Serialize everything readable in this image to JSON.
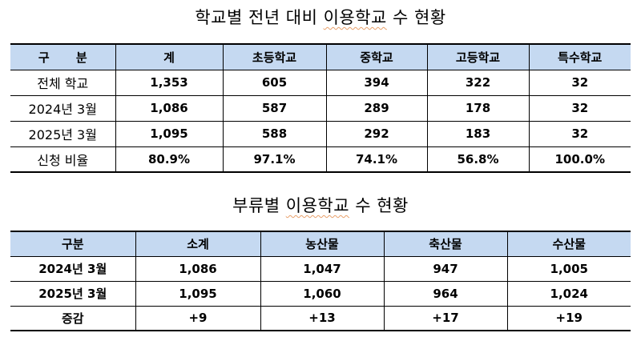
{
  "table1": {
    "title_parts": [
      "학교별 전년 대비 ",
      "이용학교",
      " 수 현황"
    ],
    "headers": [
      "구 분",
      "계",
      "초등학교",
      "중학교",
      "고등학교",
      "특수학교"
    ],
    "rows": [
      [
        "전체 학교",
        "1,353",
        "605",
        "394",
        "322",
        "32"
      ],
      [
        "2024년 3월",
        "1,086",
        "587",
        "289",
        "178",
        "32"
      ],
      [
        "2025년 3월",
        "1,095",
        "588",
        "292",
        "183",
        "32"
      ],
      [
        "신청 비율",
        "80.9%",
        "97.1%",
        "74.1%",
        "56.8%",
        "100.0%"
      ]
    ]
  },
  "table2": {
    "title_parts": [
      "부류별 ",
      "이용학교",
      " 수 현황"
    ],
    "headers": [
      "구분",
      "소계",
      "농산물",
      "축산물",
      "수산물"
    ],
    "rows": [
      [
        "2024년 3월",
        "1,086",
        "1,047",
        "947",
        "1,005"
      ],
      [
        "2025년 3월",
        "1,095",
        "1,060",
        "964",
        "1,024"
      ],
      [
        "증감",
        "+9",
        "+13",
        "+17",
        "+19"
      ]
    ]
  },
  "colors": {
    "header_bg": "#c5d9f1",
    "spellcheck_underline": "#e8a06a"
  }
}
